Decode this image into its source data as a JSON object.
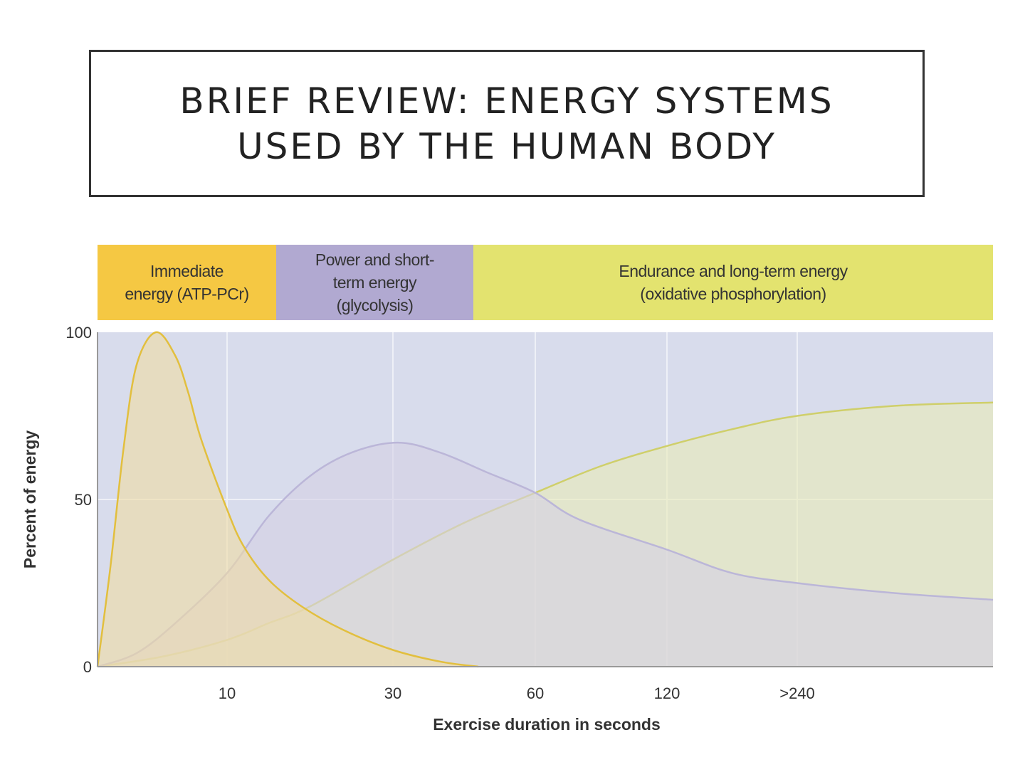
{
  "title": {
    "line1": "BRIEF REVIEW: ENERGY SYSTEMS",
    "line2": "USED BY THE HUMAN BODY"
  },
  "bands": [
    {
      "line1": "Immediate",
      "line2": "energy (ATP-PCr)",
      "line3": "",
      "color": "#f5c843"
    },
    {
      "line1": "Power and short-",
      "line2": "term energy",
      "line3": "(glycolysis)",
      "color": "#b1a9d1"
    },
    {
      "line1": "Endurance and long-term energy",
      "line2": "(oxidative phosphorylation)",
      "line3": "",
      "color": "#e3e36f"
    }
  ],
  "chart_data": {
    "type": "area",
    "title": "",
    "xlabel": "Exercise duration in seconds",
    "ylabel": "Percent of energy",
    "xlim": [
      0,
      480
    ],
    "ylim": [
      0,
      100
    ],
    "x_ticks": [
      {
        "value": 10,
        "label": "10"
      },
      {
        "value": 30,
        "label": "30"
      },
      {
        "value": 60,
        "label": "60"
      },
      {
        "value": 120,
        "label": "120"
      },
      {
        "value": 240,
        "label": ">240"
      }
    ],
    "y_ticks": [
      {
        "value": 0,
        "label": "0"
      },
      {
        "value": 50,
        "label": "50"
      },
      {
        "value": 100,
        "label": "100"
      }
    ],
    "grid": true,
    "series": [
      {
        "name": "Oxidative phosphorylation",
        "stroke": "#cfcf6a",
        "fill": "#e9ebb8",
        "points": [
          [
            0,
            0
          ],
          [
            5,
            3
          ],
          [
            10,
            8
          ],
          [
            15,
            13
          ],
          [
            20,
            18
          ],
          [
            30,
            32
          ],
          [
            45,
            43
          ],
          [
            60,
            52
          ],
          [
            90,
            60
          ],
          [
            120,
            66
          ],
          [
            180,
            71
          ],
          [
            240,
            75
          ],
          [
            360,
            78
          ],
          [
            480,
            79
          ]
        ]
      },
      {
        "name": "Glycolysis",
        "stroke": "#bbb6d8",
        "fill": "#d6d0e4",
        "points": [
          [
            0,
            0
          ],
          [
            3,
            4
          ],
          [
            6,
            13
          ],
          [
            10,
            28
          ],
          [
            15,
            45
          ],
          [
            20,
            57
          ],
          [
            25,
            64
          ],
          [
            31,
            67
          ],
          [
            40,
            64
          ],
          [
            50,
            58
          ],
          [
            60,
            52
          ],
          [
            80,
            44
          ],
          [
            120,
            35
          ],
          [
            180,
            28
          ],
          [
            240,
            25
          ],
          [
            360,
            22
          ],
          [
            480,
            20
          ]
        ]
      },
      {
        "name": "ATP-PCr",
        "stroke": "#e2bf3e",
        "fill": "#f0dca4",
        "points": [
          [
            0,
            0
          ],
          [
            1,
            30
          ],
          [
            2,
            65
          ],
          [
            3,
            90
          ],
          [
            4.5,
            100
          ],
          [
            6,
            93
          ],
          [
            7,
            82
          ],
          [
            8,
            68
          ],
          [
            10,
            47
          ],
          [
            12,
            36
          ],
          [
            15,
            26
          ],
          [
            19,
            18
          ],
          [
            24,
            11
          ],
          [
            30,
            5
          ],
          [
            40,
            1.5
          ],
          [
            48,
            0
          ]
        ]
      }
    ]
  }
}
